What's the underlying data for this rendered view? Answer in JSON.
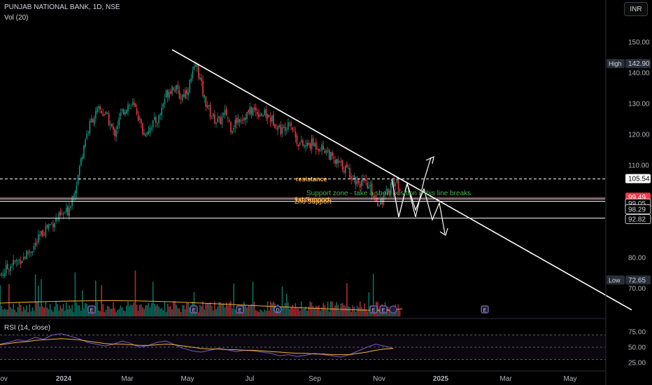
{
  "header": {
    "symbol_line": "PUNJAB NATIONAL BANK, 1D, NSE",
    "volume_label": "Vol (20)",
    "currency_button": "INR"
  },
  "rsi_label": "RSI (14, close)",
  "colors": {
    "background": "#000000",
    "up": "#089981",
    "down": "#f23645",
    "trendline": "#ffffff",
    "rsi_line": "#7e57c2",
    "rsi_ma": "#f0b030",
    "support_text": "#4caf50",
    "resistance_text": "#ffb74d"
  },
  "chart_data": [
    {
      "type": "candlestick",
      "title": "PUNJAB NATIONAL BANK, 1D, NSE",
      "y_axis": {
        "range": [
          60,
          155
        ],
        "ticks": [
          {
            "value": 150,
            "label": "150.00"
          },
          {
            "value": 140,
            "label": "140.00"
          },
          {
            "value": 130,
            "label": "130.00"
          },
          {
            "value": 120,
            "label": "120.00"
          },
          {
            "value": 110,
            "label": "110.00"
          },
          {
            "value": 80,
            "label": "80.00"
          },
          {
            "value": 70,
            "label": "70.00"
          }
        ]
      },
      "x_axis": {
        "ticks": [
          "Nov",
          "2024",
          "Mar",
          "May",
          "Jul",
          "Sep",
          "Nov",
          "2025",
          "Mar",
          "May"
        ],
        "bold_ticks": [
          "2024",
          "2025"
        ]
      },
      "price_series": [
        [
          "2023-10-25",
          72.6
        ],
        [
          "2023-11-06",
          77
        ],
        [
          "2023-11-20",
          80
        ],
        [
          "2023-12-01",
          84
        ],
        [
          "2023-12-12",
          90
        ],
        [
          "2023-12-20",
          92
        ],
        [
          "2024-01-01",
          95
        ],
        [
          "2024-01-10",
          105
        ],
        [
          "2024-01-17",
          118
        ],
        [
          "2024-01-24",
          125
        ],
        [
          "2024-01-31",
          128
        ],
        [
          "2024-02-07",
          126
        ],
        [
          "2024-02-14",
          120
        ],
        [
          "2024-02-21",
          127
        ],
        [
          "2024-02-28",
          130
        ],
        [
          "2024-03-06",
          128
        ],
        [
          "2024-03-13",
          120
        ],
        [
          "2024-03-20",
          123
        ],
        [
          "2024-03-27",
          125
        ],
        [
          "2024-04-03",
          133
        ],
        [
          "2024-04-10",
          136
        ],
        [
          "2024-04-17",
          132
        ],
        [
          "2024-04-24",
          135
        ],
        [
          "2024-05-02",
          142.9
        ],
        [
          "2024-05-09",
          132
        ],
        [
          "2024-05-16",
          126
        ],
        [
          "2024-05-23",
          124
        ],
        [
          "2024-05-30",
          127
        ],
        [
          "2024-06-04",
          122
        ],
        [
          "2024-06-10",
          125
        ],
        [
          "2024-06-17",
          126
        ],
        [
          "2024-06-24",
          128
        ],
        [
          "2024-07-01",
          127
        ],
        [
          "2024-07-08",
          126
        ],
        [
          "2024-07-15",
          124
        ],
        [
          "2024-07-22",
          121
        ],
        [
          "2024-07-29",
          125
        ],
        [
          "2024-08-05",
          118
        ],
        [
          "2024-08-12",
          116
        ],
        [
          "2024-08-19",
          117
        ],
        [
          "2024-08-26",
          116
        ],
        [
          "2024-09-02",
          115
        ],
        [
          "2024-09-09",
          111
        ],
        [
          "2024-09-16",
          110
        ],
        [
          "2024-09-23",
          108
        ],
        [
          "2024-09-30",
          105
        ],
        [
          "2024-10-07",
          104
        ],
        [
          "2024-10-14",
          102
        ],
        [
          "2024-10-21",
          98
        ],
        [
          "2024-10-28",
          100
        ],
        [
          "2024-11-04",
          105
        ],
        [
          "2024-11-11",
          103
        ]
      ],
      "reference_lines": [
        {
          "value": 105.54,
          "label": "105.54",
          "style": "dashed"
        },
        {
          "value": 99.49,
          "label": "99.49",
          "style": "solid",
          "color": "#f23645"
        },
        {
          "value": 99.05,
          "label": "99.05",
          "style": "solid"
        },
        {
          "value": 98.29,
          "label": "98.29",
          "style": "solid"
        },
        {
          "value": 92.82,
          "label": "92.82",
          "style": "solid"
        }
      ],
      "high": {
        "label": "High",
        "value": "142.90"
      },
      "low": {
        "label": "Low",
        "value": "72.65"
      },
      "annotations": [
        {
          "text": "resistance"
        },
        {
          "text": "Support zone - take a short position if this line breaks"
        },
        {
          "text": "1st Support"
        },
        {
          "text": "2nd Support"
        }
      ],
      "trendline": {
        "start": [
          "2024-04-09",
          147.5
        ],
        "end": [
          "2025-06-18",
          63
        ]
      },
      "event_markers": [
        "E",
        "E",
        "E",
        "D",
        "E",
        "E",
        "E",
        "E"
      ]
    },
    {
      "type": "line",
      "title": "RSI (14, close)",
      "y_axis": {
        "ticks": [
          75,
          50,
          25
        ],
        "tick_labels": [
          "75.00",
          "50.00",
          "25.00"
        ],
        "range": [
          20,
          80
        ]
      },
      "series": [
        {
          "values": [
            55,
            58,
            62,
            60,
            66,
            63,
            70,
            72,
            68,
            64,
            58,
            55,
            52,
            55,
            60,
            56,
            50,
            53,
            58,
            60,
            54,
            48,
            44,
            42,
            45,
            48,
            46,
            43,
            45,
            44,
            42,
            40,
            36,
            38,
            35,
            37,
            40,
            38,
            36,
            34,
            38,
            44,
            50,
            55,
            52,
            48
          ]
        },
        {
          "values": [
            54,
            56,
            58,
            59,
            61,
            62,
            63,
            64,
            63,
            62,
            60,
            58,
            56,
            55,
            55,
            54,
            53,
            53,
            54,
            55,
            54,
            52,
            50,
            48,
            47,
            47,
            46,
            46,
            45,
            45,
            44,
            43,
            42,
            41,
            40,
            40,
            39,
            39,
            38,
            38,
            38,
            40,
            42,
            45,
            47,
            48
          ]
        }
      ]
    }
  ]
}
